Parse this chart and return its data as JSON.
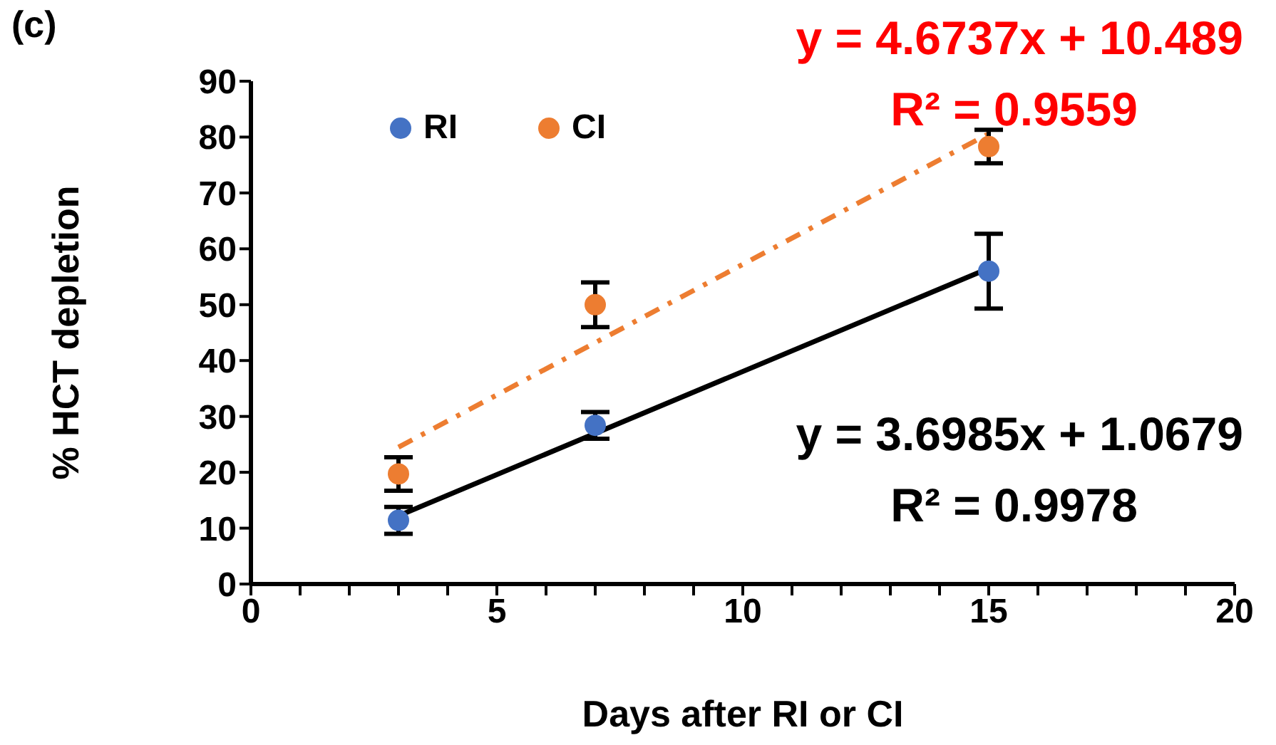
{
  "chart_data": {
    "type": "scatter",
    "xlabel": "Days after RI or CI",
    "ylabel": "% HCT depletion",
    "annotations": [
      "(c)",
      "y = 4.6737x + 10.489",
      "R² = 0.9559",
      "y = 3.6985x + 1.0679",
      "R² = 0.9978"
    ],
    "series": [
      {
        "name": "RI",
        "color": "#4472c4",
        "x": [
          3,
          7,
          15
        ],
        "values": [
          11.4,
          28.4,
          56.0
        ],
        "errors": [
          2.4,
          2.4,
          6.7
        ]
      },
      {
        "name": "CI",
        "color": "#ed7d31",
        "x": [
          3,
          7,
          15
        ],
        "values": [
          19.7,
          50.0,
          78.3
        ],
        "errors": [
          3.0,
          4.0,
          3.0
        ]
      },
      {
        "type": "line",
        "color": "#000000",
        "x": [
          3,
          15
        ],
        "values": [
          12.2,
          56.5
        ],
        "line_style": "solid",
        "marker": "none"
      },
      {
        "type": "line",
        "color": "#ed7d31",
        "x": [
          3,
          15
        ],
        "values": [
          24.5,
          80.6
        ],
        "line_style": "dashed",
        "marker": "none"
      }
    ],
    "xlim": [
      0,
      20
    ],
    "xticks": [
      0,
      {
        "value": 1,
        "label": null
      },
      {
        "value": 2,
        "label": null
      },
      {
        "value": 3,
        "label": null
      },
      {
        "value": 4,
        "label": null
      },
      5,
      {
        "value": 6,
        "label": null
      },
      {
        "value": 7,
        "label": null
      },
      {
        "value": 8,
        "label": null
      },
      {
        "value": 9,
        "label": null
      },
      10,
      {
        "value": 11,
        "label": null
      },
      {
        "value": 12,
        "label": null
      },
      {
        "value": 13,
        "label": null
      },
      {
        "value": 14,
        "label": null
      },
      15,
      {
        "value": 16,
        "label": null
      },
      {
        "value": 17,
        "label": null
      },
      {
        "value": 18,
        "label": null
      },
      {
        "value": 19,
        "label": null
      },
      20
    ],
    "ylim": [
      0,
      90
    ],
    "yticks": [
      0,
      10,
      20,
      30,
      40,
      50,
      60,
      70,
      80,
      90
    ],
    "grid": false,
    "legend": "top left",
    "marker": "circle"
  }
}
